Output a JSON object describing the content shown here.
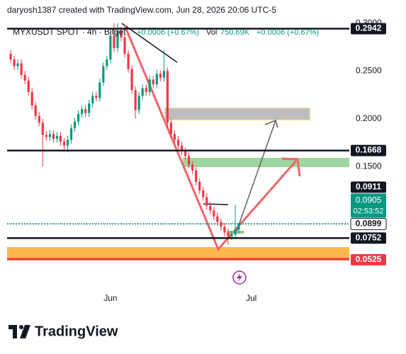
{
  "header": {
    "credit": "daryosh1387 created with TradingView.com, Jun 28, 2026 20:06 UTC-5"
  },
  "legend": {
    "symbol": "MYXUSDT SPOT · 4h · Bitget",
    "change": "+0.0006 (+0.67%)",
    "vol_label": "Vol",
    "vol_value": "750.69K",
    "vol_change": "+0.0006 (+0.67%)"
  },
  "chart_data": {
    "type": "candlestick",
    "up_color": "#089981",
    "down_color": "#f23645",
    "open": [
      0.268,
      0.262,
      0.255,
      0.258,
      0.246,
      0.24,
      0.228,
      0.214,
      0.203,
      0.196,
      0.183,
      0.181,
      0.184,
      0.179,
      0.182,
      0.176,
      0.172,
      0.178,
      0.19,
      0.197,
      0.205,
      0.21,
      0.206,
      0.216,
      0.224,
      0.222,
      0.238,
      0.255,
      0.262,
      0.287,
      0.274,
      0.292,
      0.285,
      0.268,
      0.252,
      0.23,
      0.209,
      0.224,
      0.232,
      0.228,
      0.241,
      0.236,
      0.247,
      0.243,
      0.25,
      0.196,
      0.184,
      0.178,
      0.172,
      0.166,
      0.161,
      0.152,
      0.146,
      0.134,
      0.125,
      0.118,
      0.109,
      0.104,
      0.098,
      0.092,
      0.087,
      0.081,
      0.077,
      0.079,
      0.084
    ],
    "high": [
      0.272,
      0.266,
      0.262,
      0.262,
      0.25,
      0.244,
      0.232,
      0.218,
      0.207,
      0.2,
      0.187,
      0.188,
      0.188,
      0.186,
      0.186,
      0.18,
      0.182,
      0.194,
      0.201,
      0.209,
      0.214,
      0.214,
      0.22,
      0.228,
      0.228,
      0.242,
      0.259,
      0.266,
      0.291,
      0.3,
      0.3,
      0.296,
      0.289,
      0.272,
      0.256,
      0.234,
      0.228,
      0.236,
      0.236,
      0.245,
      0.245,
      0.251,
      0.251,
      0.272,
      0.254,
      0.2,
      0.188,
      0.182,
      0.176,
      0.17,
      0.165,
      0.156,
      0.15,
      0.138,
      0.129,
      0.122,
      0.113,
      0.108,
      0.102,
      0.096,
      0.091,
      0.085,
      0.083,
      0.11,
      0.0911
    ],
    "low": [
      0.258,
      0.251,
      0.251,
      0.242,
      0.236,
      0.224,
      0.21,
      0.199,
      0.192,
      0.15,
      0.177,
      0.177,
      0.175,
      0.175,
      0.172,
      0.168,
      0.165,
      0.174,
      0.186,
      0.193,
      0.201,
      0.202,
      0.202,
      0.212,
      0.218,
      0.218,
      0.234,
      0.251,
      0.258,
      0.27,
      0.27,
      0.281,
      0.264,
      0.248,
      0.226,
      0.2,
      0.205,
      0.22,
      0.224,
      0.224,
      0.232,
      0.232,
      0.239,
      0.239,
      0.19,
      0.18,
      0.174,
      0.168,
      0.162,
      0.157,
      0.148,
      0.142,
      0.13,
      0.121,
      0.114,
      0.105,
      0.1,
      0.094,
      0.088,
      0.083,
      0.077,
      0.068,
      0.073,
      0.075,
      0.08
    ],
    "close": [
      0.262,
      0.255,
      0.258,
      0.246,
      0.24,
      0.228,
      0.214,
      0.203,
      0.196,
      0.183,
      0.181,
      0.184,
      0.179,
      0.182,
      0.176,
      0.172,
      0.178,
      0.19,
      0.197,
      0.205,
      0.21,
      0.206,
      0.216,
      0.224,
      0.222,
      0.238,
      0.255,
      0.262,
      0.287,
      0.274,
      0.292,
      0.285,
      0.268,
      0.252,
      0.23,
      0.209,
      0.224,
      0.232,
      0.228,
      0.241,
      0.236,
      0.247,
      0.243,
      0.25,
      0.196,
      0.184,
      0.178,
      0.172,
      0.166,
      0.161,
      0.152,
      0.146,
      0.134,
      0.125,
      0.118,
      0.109,
      0.104,
      0.098,
      0.092,
      0.087,
      0.081,
      0.077,
      0.079,
      0.084,
      0.0905
    ],
    "xlim": [
      -1,
      95
    ],
    "xticks": [
      {
        "value": 28,
        "label": "Jun"
      },
      {
        "value": 67.5,
        "label": "Jul"
      }
    ],
    "ylim": [
      0.028,
      0.302
    ],
    "yticks": [
      {
        "value": 0.15,
        "label": "0.1500"
      },
      {
        "value": 0.2,
        "label": "0.2000"
      },
      {
        "value": 0.25,
        "label": "0.2500"
      },
      {
        "value": 0.3,
        "label": "0.3000"
      }
    ],
    "price_labels": [
      {
        "value": 0.2942,
        "color": "#131722",
        "line": "solid"
      },
      {
        "value": 0.1668,
        "color": "#131722",
        "line": "solid"
      },
      {
        "value": 0.0911,
        "color": "#131722"
      },
      {
        "value": 0.0899,
        "color": "#ffffff",
        "line": "dotted"
      },
      {
        "value": 0.0752,
        "color": "#131722",
        "line": "solid"
      },
      {
        "value": 0.0525,
        "color": "#f23645"
      }
    ],
    "current": {
      "value": 0.0905,
      "countdown": "02:53:52",
      "color": "#089981"
    }
  },
  "footer": {
    "brand": "TradingView"
  }
}
